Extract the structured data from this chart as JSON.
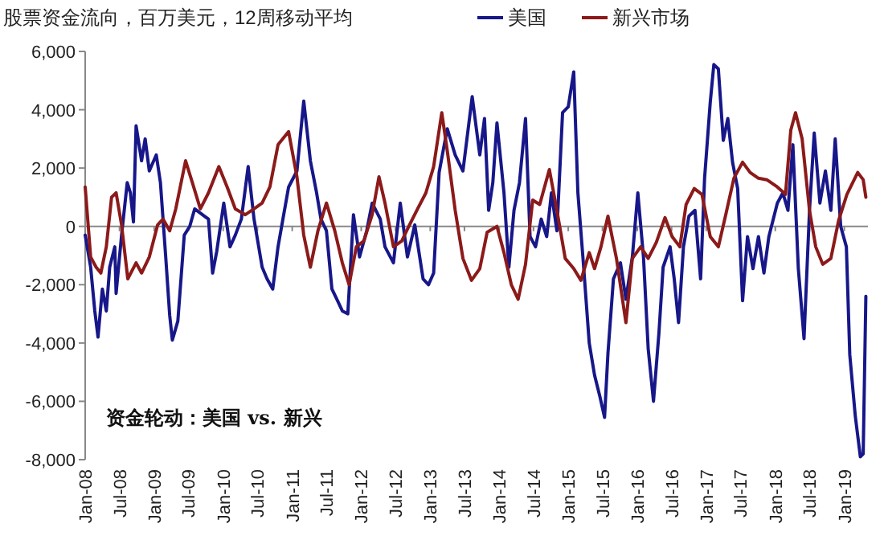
{
  "chart_data": {
    "type": "line",
    "title": "股票资金流向，百万美元，12周移动平均",
    "annotations": [
      "资金轮动：美国 vs. 新兴"
    ],
    "legend": "top",
    "xlim": [
      "2008-01-01",
      "2019-05-06"
    ],
    "ylim": [
      -8000,
      6000
    ],
    "yticks": [
      {
        "value": -8000,
        "label": "-8,000"
      },
      {
        "value": -6000,
        "label": "-6,000"
      },
      {
        "value": -4000,
        "label": "-4,000"
      },
      {
        "value": -2000,
        "label": "-2,000"
      },
      0,
      {
        "value": 2000,
        "label": "2,000"
      },
      {
        "value": 4000,
        "label": "4,000"
      },
      {
        "value": 6000,
        "label": "6,000"
      }
    ],
    "xticks": [
      {
        "value": "2008-01-01",
        "label": "Jan-08"
      },
      {
        "value": "2008-07-01",
        "label": "Jul-08"
      },
      {
        "value": "2009-01-01",
        "label": "Jan-09"
      },
      {
        "value": "2009-07-01",
        "label": "Jul-09"
      },
      {
        "value": "2010-01-01",
        "label": "Jan-10"
      },
      {
        "value": "2010-07-01",
        "label": "Jul-10"
      },
      {
        "value": "2011-01-01",
        "label": "Jan-11"
      },
      {
        "value": "2011-07-01",
        "label": "Jul-11"
      },
      {
        "value": "2012-01-01",
        "label": "Jan-12"
      },
      {
        "value": "2012-07-01",
        "label": "Jul-12"
      },
      {
        "value": "2013-01-01",
        "label": "Jan-13"
      },
      {
        "value": "2013-07-01",
        "label": "Jul-13"
      },
      {
        "value": "2014-01-01",
        "label": "Jan-14"
      },
      {
        "value": "2014-07-01",
        "label": "Jul-14"
      },
      {
        "value": "2015-01-01",
        "label": "Jan-15"
      },
      {
        "value": "2015-07-01",
        "label": "Jul-15"
      },
      {
        "value": "2016-01-01",
        "label": "Jan-16"
      },
      {
        "value": "2016-07-01",
        "label": "Jul-16"
      },
      {
        "value": "2017-01-01",
        "label": "Jan-17"
      },
      {
        "value": "2017-07-01",
        "label": "Jul-17"
      },
      {
        "value": "2018-01-01",
        "label": "Jan-18"
      },
      {
        "value": "2018-07-01",
        "label": "Jul-18"
      },
      {
        "value": "2019-01-01",
        "label": "Jan-19"
      }
    ],
    "series": [
      {
        "name": "美国",
        "color": "#17178a",
        "x": [
          "2008-01-01",
          "2008-01-30",
          "2008-02-21",
          "2008-03-09",
          "2008-04-01",
          "2008-04-22",
          "2008-05-10",
          "2008-06-06",
          "2008-06-13",
          "2008-07-12",
          "2008-08-11",
          "2008-08-28",
          "2008-09-13",
          "2008-09-27",
          "2008-10-26",
          "2008-11-14",
          "2008-12-06",
          "2009-01-12",
          "2009-02-03",
          "2009-03-03",
          "2009-03-24",
          "2009-04-07",
          "2009-05-06",
          "2009-06-09",
          "2009-07-08",
          "2009-08-03",
          "2009-09-13",
          "2009-10-15",
          "2009-11-06",
          "2009-11-28",
          "2010-01-04",
          "2010-02-06",
          "2010-03-06",
          "2010-04-07",
          "2010-05-13",
          "2010-06-13",
          "2010-07-26",
          "2010-08-21",
          "2010-09-20",
          "2010-10-18",
          "2010-11-17",
          "2010-12-13",
          "2011-01-26",
          "2011-03-03",
          "2011-04-07",
          "2011-05-10",
          "2011-06-02",
          "2011-07-01",
          "2011-07-30",
          "2011-08-25",
          "2011-09-23",
          "2011-10-22",
          "2011-11-21",
          "2011-12-23",
          "2012-01-30",
          "2012-02-28",
          "2012-04-11",
          "2012-05-06",
          "2012-06-20",
          "2012-07-26",
          "2012-09-02",
          "2012-10-11",
          "2012-11-24",
          "2012-12-23",
          "2013-01-19",
          "2013-02-17",
          "2013-04-01",
          "2013-05-13",
          "2013-06-23",
          "2013-08-11",
          "2013-09-20",
          "2013-10-15",
          "2013-11-06",
          "2013-11-28",
          "2013-12-20",
          "2014-01-26",
          "2014-02-21",
          "2014-03-20",
          "2014-04-18",
          "2014-05-20",
          "2014-06-13",
          "2014-07-12",
          "2014-08-11",
          "2014-09-09",
          "2014-10-04",
          "2014-11-02",
          "2014-12-02",
          "2015-01-01",
          "2015-01-30",
          "2015-02-21",
          "2015-03-20",
          "2015-04-22",
          "2015-05-20",
          "2015-06-16",
          "2015-07-12",
          "2015-07-30",
          "2015-08-28",
          "2015-10-04",
          "2015-11-02",
          "2015-12-06",
          "2016-01-04",
          "2016-02-03",
          "2016-02-28",
          "2016-03-27",
          "2016-04-25",
          "2016-05-17",
          "2016-06-23",
          "2016-07-15",
          "2016-08-07",
          "2016-09-02",
          "2016-10-01",
          "2016-11-02",
          "2016-12-02",
          "2016-12-23",
          "2017-01-22",
          "2017-02-10",
          "2017-03-06",
          "2017-04-01",
          "2017-04-25",
          "2017-05-20",
          "2017-06-16",
          "2017-07-12",
          "2017-08-07",
          "2017-09-05",
          "2017-10-04",
          "2017-11-02",
          "2017-11-28",
          "2018-01-12",
          "2018-02-10",
          "2018-03-09",
          "2018-04-04",
          "2018-05-03",
          "2018-06-02",
          "2018-07-01",
          "2018-07-26",
          "2018-08-25",
          "2018-09-23",
          "2018-10-22",
          "2018-11-14",
          "2018-12-13",
          "2019-01-12",
          "2019-01-30",
          "2019-02-28",
          "2019-03-27",
          "2019-04-11",
          "2019-04-25"
        ],
        "values": [
          -300,
          -1400,
          -2900,
          -3800,
          -2150,
          -2900,
          -1400,
          -700,
          -2300,
          -300,
          1500,
          1150,
          150,
          3450,
          2250,
          3000,
          1900,
          2450,
          1500,
          -1050,
          -3050,
          -3900,
          -3250,
          -300,
          0,
          600,
          400,
          250,
          -1600,
          -850,
          800,
          -700,
          -300,
          250,
          2050,
          250,
          -1400,
          -1800,
          -2150,
          -700,
          400,
          1350,
          1900,
          4300,
          2250,
          1150,
          250,
          -150,
          -2150,
          -2500,
          -2900,
          -3000,
          400,
          -1050,
          -150,
          800,
          250,
          -700,
          -1250,
          800,
          -1050,
          50,
          -1800,
          -2000,
          -1600,
          1850,
          3350,
          2450,
          1900,
          4450,
          2450,
          3700,
          550,
          1500,
          3550,
          1150,
          -1400,
          550,
          1500,
          3700,
          -350,
          -700,
          250,
          -350,
          1150,
          -150,
          3900,
          4100,
          5300,
          1150,
          -1100,
          -4000,
          -5100,
          -5800,
          -6550,
          -4350,
          -1800,
          -1250,
          -2500,
          -1050,
          1150,
          -1050,
          -4200,
          -6000,
          -3650,
          -1400,
          -700,
          -1800,
          -3300,
          -700,
          350,
          550,
          -1800,
          1650,
          4250,
          5550,
          5400,
          2950,
          3700,
          2200,
          1300,
          -2550,
          -350,
          -1450,
          -350,
          -1600,
          -350,
          800,
          1150,
          550,
          2800,
          -1450,
          -3850,
          550,
          3200,
          800,
          1900,
          550,
          3000,
          0,
          -700,
          -4400,
          -6500,
          -7900,
          -7800,
          -2400
        ]
      },
      {
        "name": "新兴市场",
        "color": "#8c1a1a",
        "x": [
          "2008-01-01",
          "2008-01-30",
          "2008-02-28",
          "2008-03-24",
          "2008-04-22",
          "2008-05-20",
          "2008-06-13",
          "2008-07-12",
          "2008-08-14",
          "2008-09-27",
          "2008-10-26",
          "2008-12-06",
          "2009-01-19",
          "2009-02-17",
          "2009-03-24",
          "2009-04-25",
          "2009-06-16",
          "2009-07-22",
          "2009-09-02",
          "2009-10-15",
          "2009-12-09",
          "2010-01-22",
          "2010-03-06",
          "2010-04-28",
          "2010-06-13",
          "2010-07-26",
          "2010-09-05",
          "2010-10-18",
          "2010-12-13",
          "2011-01-26",
          "2011-03-03",
          "2011-04-07",
          "2011-05-17",
          "2011-07-01",
          "2011-08-14",
          "2011-09-23",
          "2011-10-29",
          "2011-12-06",
          "2012-01-15",
          "2012-02-28",
          "2012-04-04",
          "2012-05-06",
          "2012-06-20",
          "2012-08-03",
          "2012-09-13",
          "2012-10-26",
          "2012-12-09",
          "2013-01-19",
          "2013-03-03",
          "2013-04-01",
          "2013-05-13",
          "2013-06-23",
          "2013-08-07",
          "2013-09-20",
          "2013-10-29",
          "2013-12-20",
          "2014-01-26",
          "2014-03-06",
          "2014-04-11",
          "2014-05-20",
          "2014-06-27",
          "2014-08-03",
          "2014-09-23",
          "2014-11-02",
          "2014-12-16",
          "2015-01-30",
          "2015-03-09",
          "2015-04-22",
          "2015-05-20",
          "2015-06-23",
          "2015-07-30",
          "2015-09-13",
          "2015-11-02",
          "2015-12-06",
          "2016-01-19",
          "2016-02-28",
          "2016-04-11",
          "2016-05-27",
          "2016-07-04",
          "2016-08-14",
          "2016-09-16",
          "2016-10-29",
          "2016-12-09",
          "2017-01-22",
          "2017-03-06",
          "2017-04-14",
          "2017-05-27",
          "2017-07-12",
          "2017-08-21",
          "2017-10-04",
          "2017-11-17",
          "2018-01-12",
          "2018-02-24",
          "2018-03-24",
          "2018-04-18",
          "2018-05-23",
          "2018-07-01",
          "2018-08-03",
          "2018-09-09",
          "2018-10-22",
          "2018-12-02",
          "2019-01-15",
          "2019-03-13",
          "2019-04-11",
          "2019-04-25"
        ],
        "values": [
          1350,
          -1050,
          -1400,
          -1600,
          -700,
          1000,
          1150,
          50,
          -1800,
          -1250,
          -1600,
          -1050,
          50,
          250,
          -150,
          600,
          2250,
          1500,
          600,
          1150,
          2050,
          1350,
          600,
          400,
          600,
          800,
          1350,
          2800,
          3250,
          1700,
          -300,
          -1400,
          -150,
          800,
          -150,
          -1250,
          -2000,
          -700,
          -500,
          400,
          1700,
          800,
          -700,
          -500,
          50,
          600,
          1150,
          2050,
          3900,
          2600,
          550,
          -1100,
          -1850,
          -1450,
          -200,
          0,
          -900,
          -2000,
          -2500,
          -1300,
          900,
          750,
          1950,
          550,
          -1100,
          -1450,
          -1850,
          -900,
          -1450,
          -700,
          350,
          -1100,
          -3300,
          -1100,
          -700,
          -1100,
          -550,
          300,
          -350,
          -700,
          750,
          1300,
          1100,
          -350,
          -700,
          400,
          1650,
          2200,
          1850,
          1650,
          1600,
          1350,
          1100,
          3300,
          3900,
          3000,
          550,
          -700,
          -1300,
          -1100,
          200,
          1100,
          1850,
          1600,
          1000
        ]
      }
    ]
  }
}
